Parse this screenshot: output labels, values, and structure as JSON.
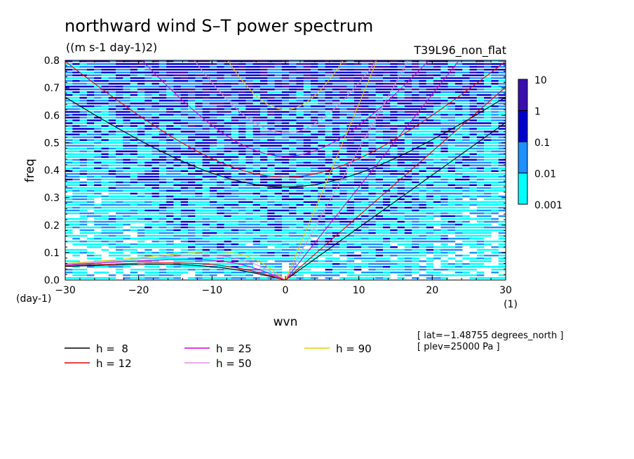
{
  "chart_data": {
    "type": "heatmap",
    "title": "northward wind S–T power spectrum",
    "subtitle": "((m s-1 day-1)2)",
    "run_label": "T39L96_non_flat",
    "xlabel": "wvn",
    "ylabel": "freq",
    "x_unit": "(1)",
    "y_unit": "(day-1)",
    "xlim": [
      -30,
      30
    ],
    "ylim": [
      0,
      0.8
    ],
    "x_ticks": [
      -30,
      -20,
      -10,
      0,
      10,
      20,
      30
    ],
    "x_tick_labels": [
      "−30",
      "−20",
      "−10",
      "0",
      "10",
      "20",
      "30"
    ],
    "y_ticks": [
      0.0,
      0.1,
      0.2,
      0.3,
      0.4,
      0.5,
      0.6,
      0.7,
      0.8
    ],
    "y_tick_labels": [
      "0.0",
      "0.1",
      "0.2",
      "0.3",
      "0.4",
      "0.5",
      "0.6",
      "0.7",
      "0.8"
    ],
    "info_lines": [
      "[ lat=−1.48755 degrees_north ]",
      "[ plev=25000 Pa ]"
    ],
    "colorbar": {
      "scale": "log",
      "levels": [
        0.001,
        0.01,
        0.1,
        1,
        10
      ],
      "level_labels": [
        "0.001",
        "0.01",
        "0.1",
        "1",
        "10"
      ],
      "colors": [
        "#00ffff",
        "#1e90ff",
        "#0000cd",
        "#3a0fb0"
      ]
    },
    "series": [
      {
        "name": "h =  8",
        "equivalent_depth": 8,
        "color": "#000000"
      },
      {
        "name": "h = 12",
        "equivalent_depth": 12,
        "color": "#e00000"
      },
      {
        "name": "h = 25",
        "equivalent_depth": 25,
        "color": "#d000d0"
      },
      {
        "name": "h = 50",
        "equivalent_depth": 50,
        "color": "#e090e0"
      },
      {
        "name": "h = 90",
        "equivalent_depth": 90,
        "color": "#e8d000"
      }
    ]
  }
}
